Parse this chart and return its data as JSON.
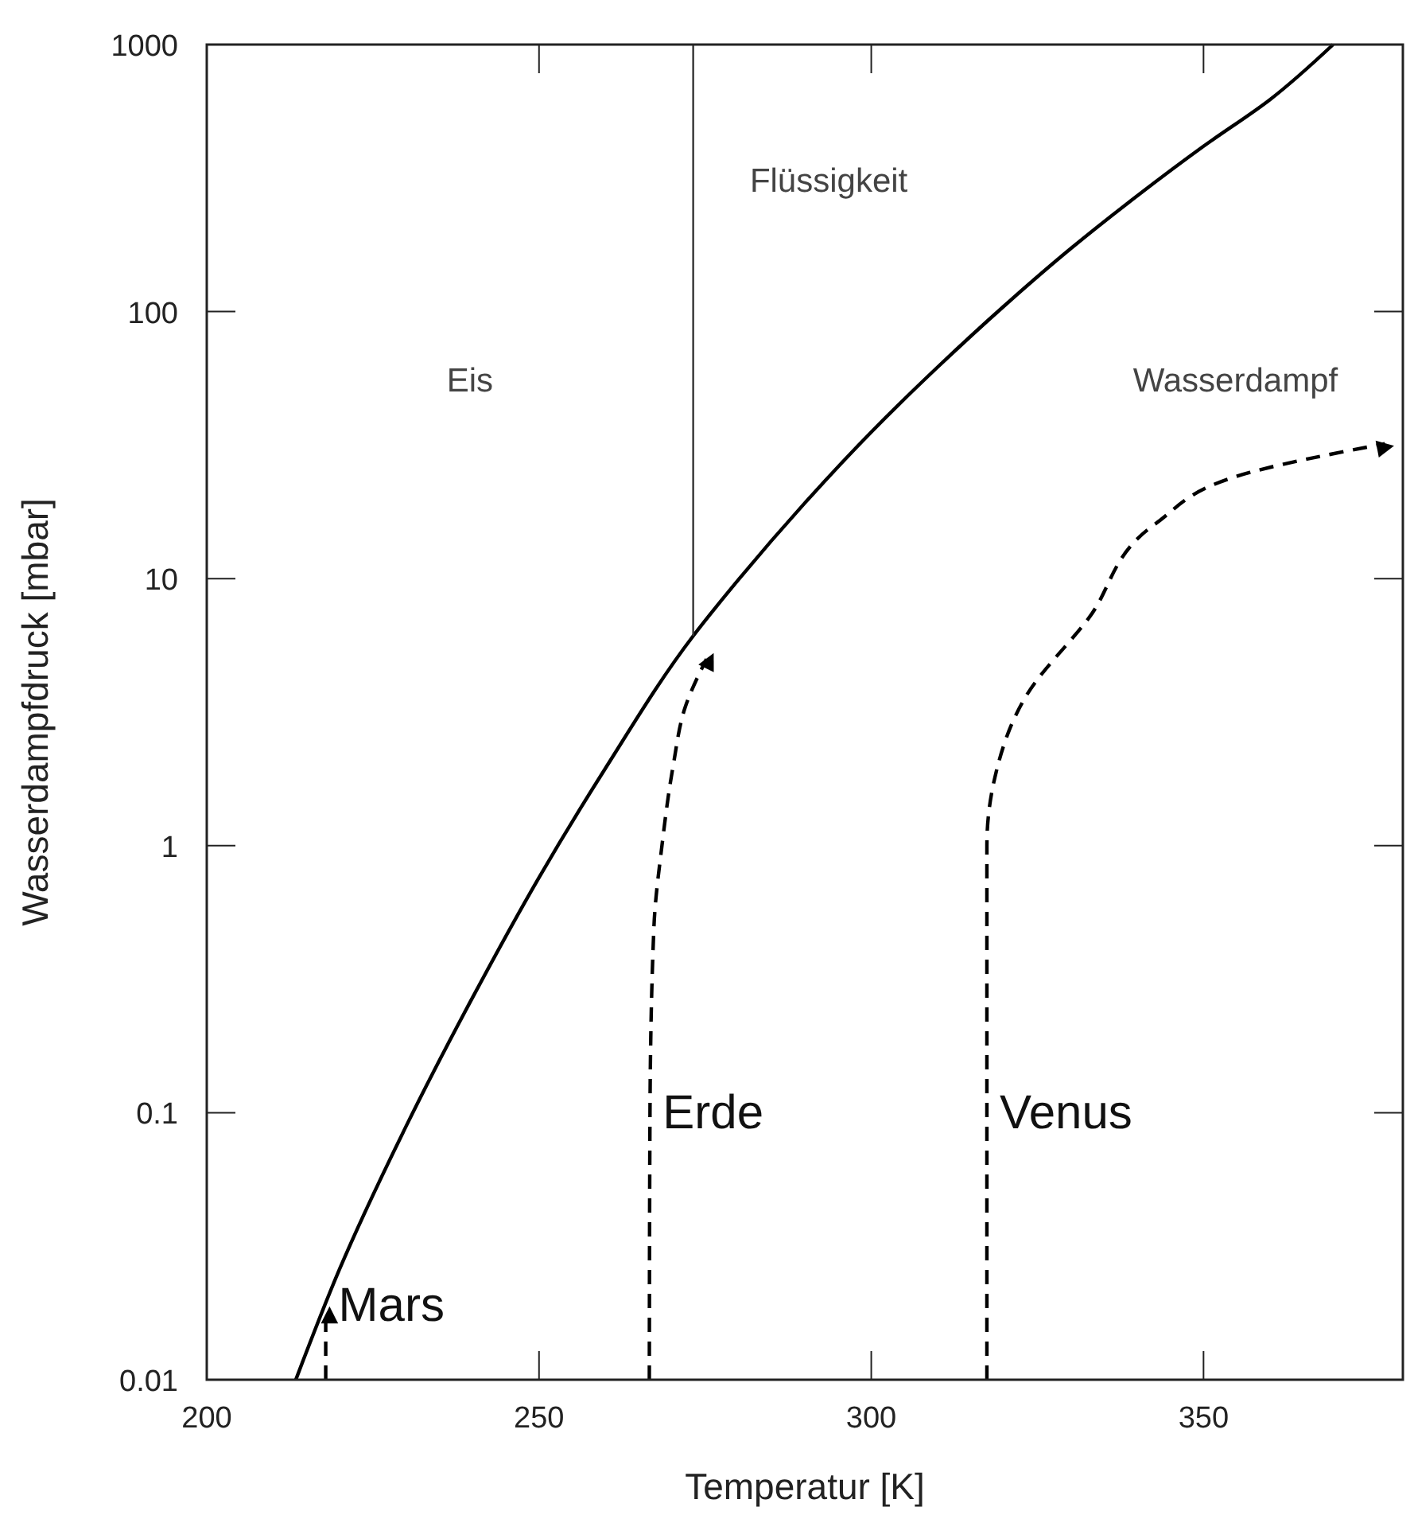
{
  "chart_data": {
    "type": "line",
    "xlabel": "Temperatur  [K]",
    "ylabel": "Wasserdampfdruck  [mbar]",
    "log": "y",
    "xlim": [
      200,
      380
    ],
    "ylim": [
      0.01,
      1000
    ],
    "xticks": [
      200,
      250,
      300,
      350
    ],
    "yticks": [
      0.01,
      0.1,
      1,
      10,
      100,
      1000
    ],
    "grid": false,
    "marker": "none",
    "series": [
      {
        "color": "#000000",
        "line_style": "solid",
        "x": [
          213.4,
          220,
          230,
          240,
          250,
          260,
          273.2,
          280,
          290,
          300,
          310,
          320,
          330,
          340,
          350,
          360,
          369.5
        ],
        "values": [
          0.01,
          0.026,
          0.089,
          0.27,
          0.76,
          1.95,
          6.1,
          9.9,
          19.2,
          35.4,
          62,
          105,
          172,
          271,
          416,
          622,
          1000
        ]
      },
      {
        "color": "#333333",
        "line_style": "solid",
        "x": [
          273.2,
          273.2
        ],
        "values": [
          6.1,
          1000
        ]
      },
      {
        "name": "Mars",
        "color": "#000000",
        "line_style": "dashed",
        "x": [
          217.9,
          217.9
        ],
        "values": [
          0.01,
          0.0175
        ]
      },
      {
        "name": "Erde",
        "color": "#000000",
        "line_style": "dashed",
        "x": [
          266.6,
          266.7,
          267.3,
          268.5,
          270.2,
          272,
          275.2
        ],
        "values": [
          0.01,
          0.1,
          0.5,
          1,
          2,
          3.3,
          5
        ]
      },
      {
        "name": "Venus",
        "color": "#000000",
        "line_style": "dashed",
        "x": [
          317.4,
          317.4,
          318.6,
          323.2,
          332.7,
          342.7,
          357,
          377.3
        ],
        "values": [
          0.01,
          1,
          1.8,
          3.6,
          7.1,
          16,
          25,
          32
        ]
      }
    ],
    "annotations": [
      "Eis",
      "Flüssigkeit",
      "Wasserdampf"
    ]
  }
}
